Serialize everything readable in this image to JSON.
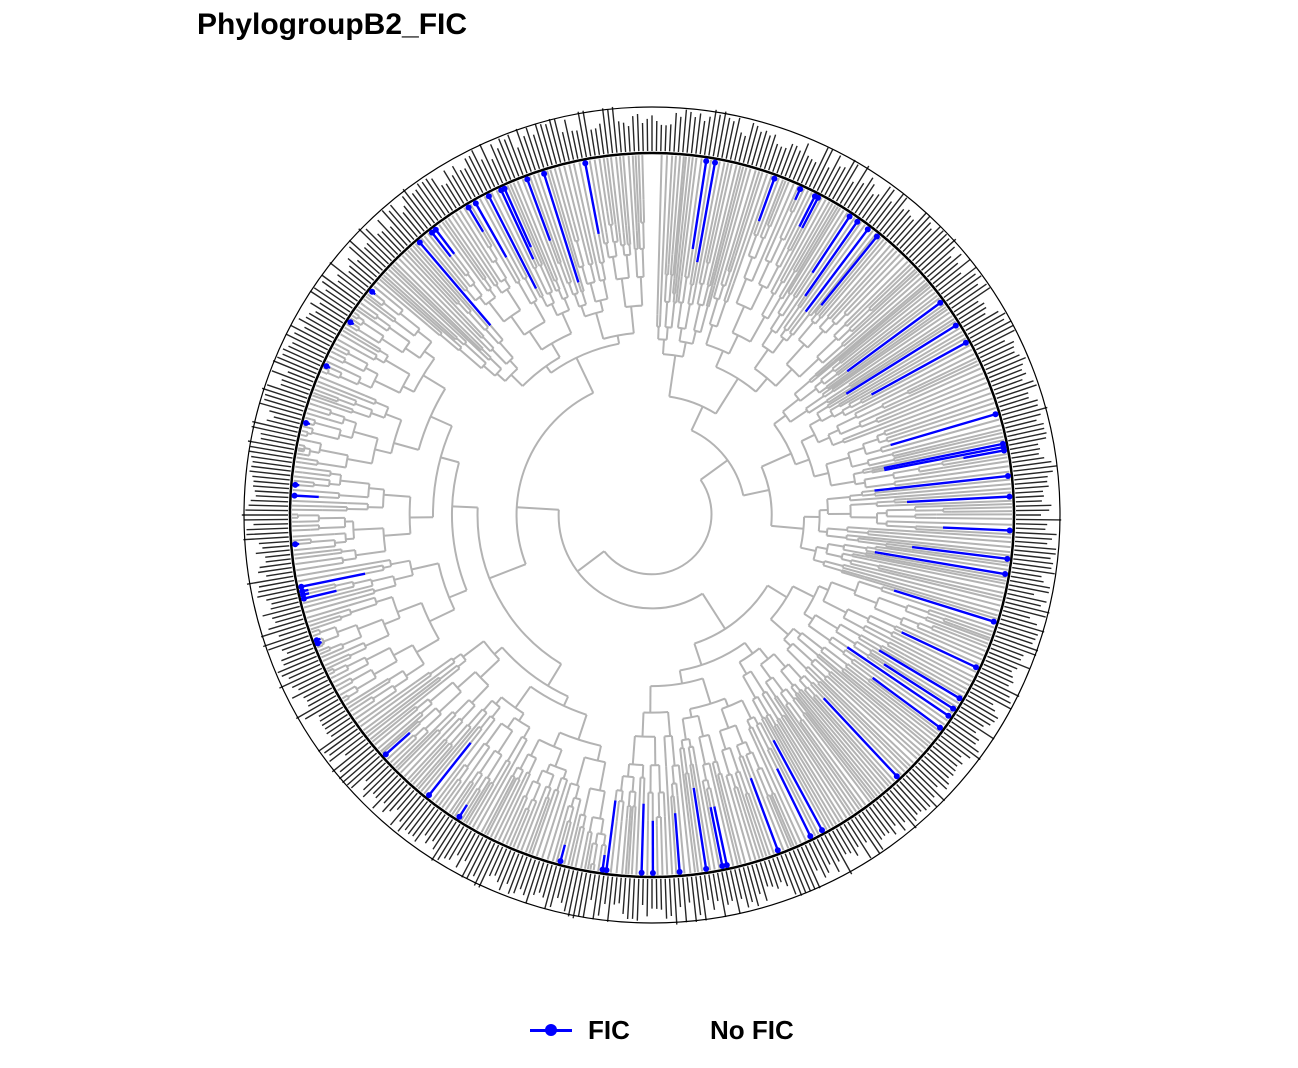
{
  "title": "PhylogroupB2_FIC",
  "legend": {
    "items": [
      {
        "label": "FIC",
        "color": "#0000ff"
      },
      {
        "label": "No FIC",
        "color": "#b3b3b3"
      }
    ]
  },
  "tree": {
    "layout": "circular",
    "branch_color_default": "#b3b3b3",
    "branch_color_highlight": "#0000ff",
    "tip_label_color": "#000000"
  }
}
